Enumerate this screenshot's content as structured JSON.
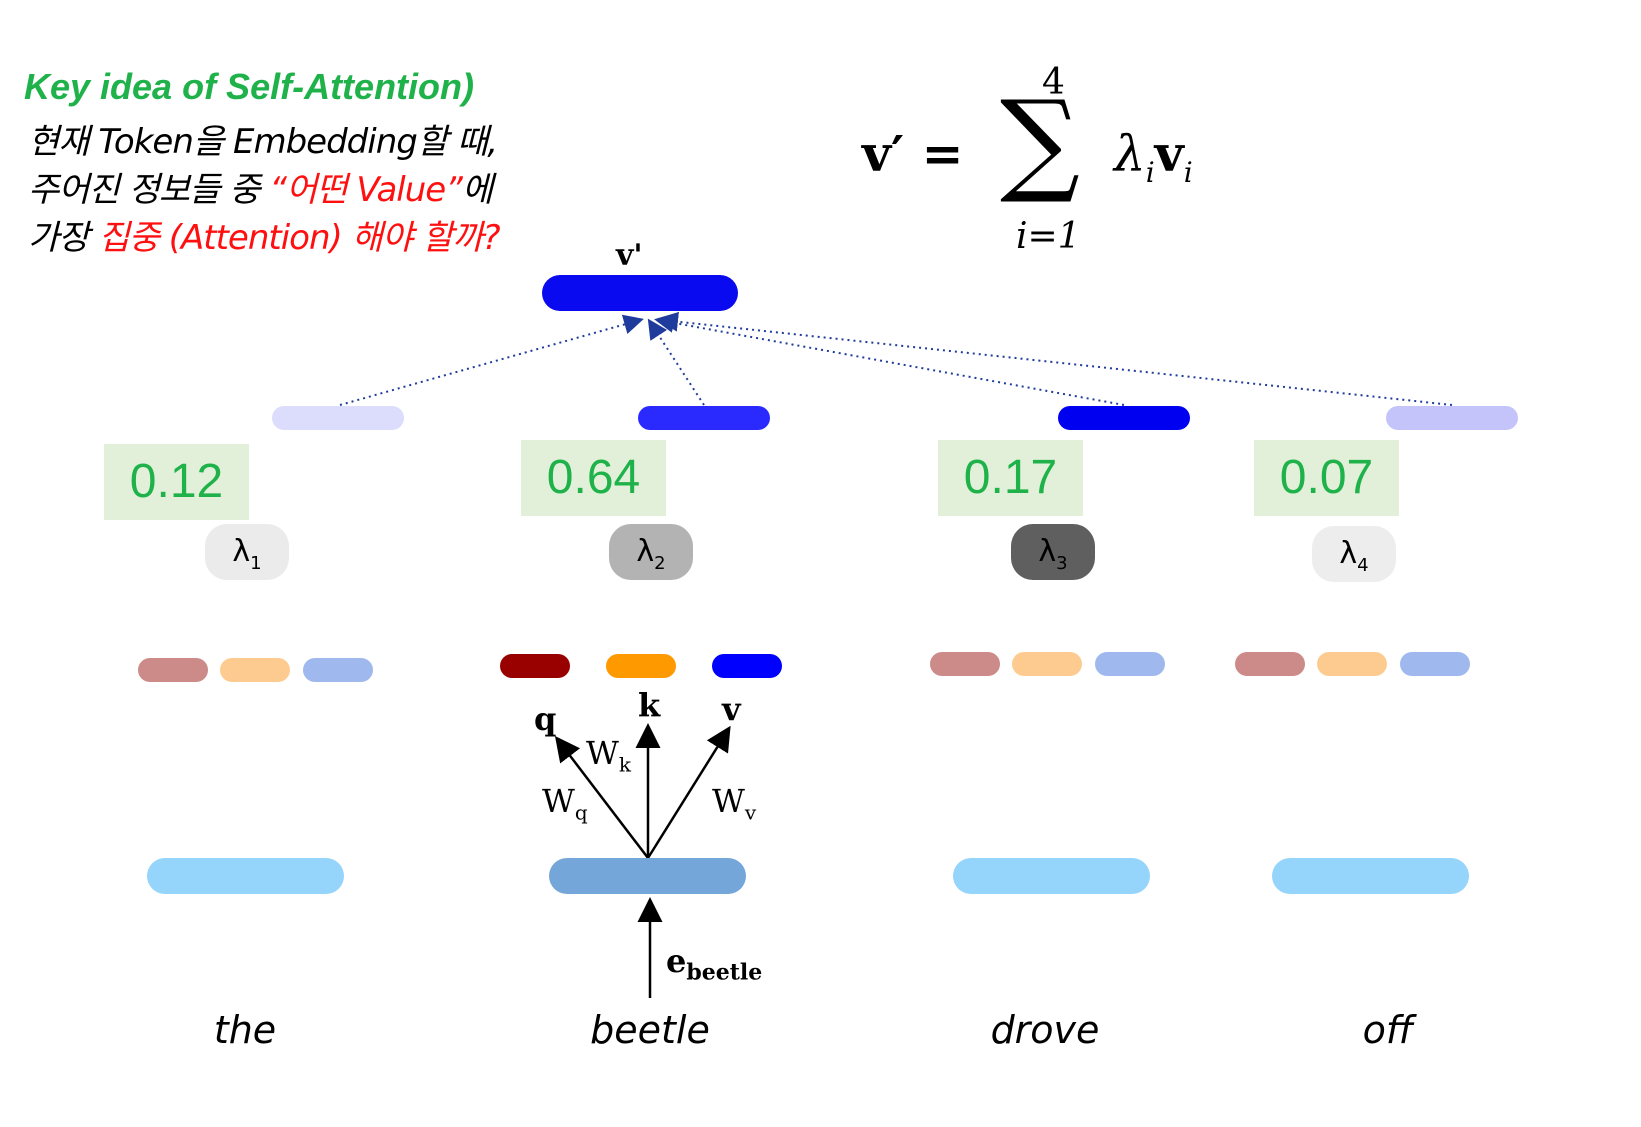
{
  "heading": {
    "title": "Key idea of Self-Attention)",
    "line1": "현재 Token을 Embedding할 때,",
    "line2_pre": "주어진 정보들 중 ",
    "line2_red": "“어떤  Value”",
    "line2_post": "에",
    "line3_pre": "가장 ",
    "line3_red": "집중",
    "line3_post": " (Attention)  해야 할까?"
  },
  "formula": {
    "lhs": "v′ =",
    "sigma": "∑",
    "upper": "4",
    "lower": "i=1",
    "term": "λ",
    "term_sub": "i",
    "term_v": "v",
    "term_v_sub": "i"
  },
  "output_label": "v'",
  "scores": [
    "0.12",
    "0.64",
    "0.17",
    "0.07"
  ],
  "lambdas": [
    {
      "sym": "λ",
      "sub": "1"
    },
    {
      "sym": "λ",
      "sub": "2"
    },
    {
      "sym": "λ",
      "sub": "3"
    },
    {
      "sym": "λ",
      "sub": "4"
    }
  ],
  "projection": {
    "q": "q",
    "k": "k",
    "v": "v",
    "wq": "W",
    "wq_sub": "q",
    "wk": "W",
    "wk_sub": "k",
    "wv": "W",
    "wv_sub": "v",
    "e": "e",
    "e_sub": "beetle"
  },
  "words": [
    "the",
    "beetle",
    "drove",
    "off"
  ],
  "colors": {
    "title_green": "#1fb24a",
    "highlight_red": "#ff1010",
    "score_bg": "#e2f0d9",
    "output_blue": "#0a0af0",
    "query_red": "#990000",
    "key_orange": "#ff9900",
    "value_blue": "#0000ff"
  }
}
